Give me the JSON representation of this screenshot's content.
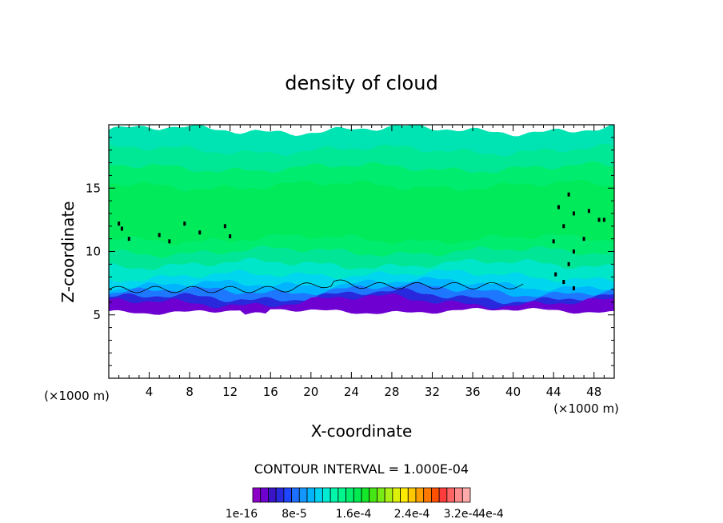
{
  "chart_data": {
    "type": "heatmap",
    "title": "density of cloud",
    "xlabel": "X-coordinate",
    "ylabel": "Z-coordinate",
    "x_unit_left": "(×1000 m)",
    "x_unit_right": "(×1000 m)",
    "xlim": [
      0,
      50
    ],
    "ylim": [
      0,
      20
    ],
    "xticks": [
      4,
      8,
      12,
      16,
      20,
      24,
      28,
      32,
      36,
      40,
      44,
      48
    ],
    "yticks": [
      5,
      10,
      15
    ],
    "contour_interval_text": "CONTOUR INTERVAL = 1.000E-04",
    "colorbar_labels": [
      "1e-16",
      "8e-5",
      "1.6e-4",
      "2.4e-4",
      "3.2e-4",
      "4e-4"
    ],
    "colorbar_colors": [
      "#8c00c8",
      "#6e00d2",
      "#3c14c8",
      "#2828dc",
      "#1e46ff",
      "#1e6eff",
      "#1496ff",
      "#00b4ff",
      "#00d2f0",
      "#00ebd2",
      "#00f5aa",
      "#00f58c",
      "#00f06e",
      "#00eb50",
      "#14e628",
      "#46e614",
      "#78eb14",
      "#aaf014",
      "#dcf00a",
      "#ffeb00",
      "#ffc800",
      "#ffa000",
      "#ff7800",
      "#ff5000",
      "#ff3c3c",
      "#ff6464",
      "#ff8c8c",
      "#ffaaaa"
    ],
    "layers_km": [
      {
        "z_top": 19.6,
        "color": "#00e4b4"
      },
      {
        "z_top": 18.0,
        "color": "#00e896"
      },
      {
        "z_top": 16.6,
        "color": "#00ec6e"
      },
      {
        "z_top": 15.2,
        "color": "#00ea5a"
      },
      {
        "z_top": 11.0,
        "color": "#00ec6e"
      },
      {
        "z_top": 10.0,
        "color": "#00e696"
      },
      {
        "z_top": 9.0,
        "color": "#00e6c8"
      },
      {
        "z_top": 8.0,
        "color": "#00d6ee"
      },
      {
        "z_top": 7.3,
        "color": "#00b4ff"
      },
      {
        "z_top": 6.8,
        "color": "#1e78ff"
      },
      {
        "z_top": 6.3,
        "color": "#2828dc"
      },
      {
        "z_top": 5.9,
        "color": "#6e00d2"
      }
    ],
    "cloud_base_km": 5.0,
    "cloud_top_km": 19.6
  }
}
